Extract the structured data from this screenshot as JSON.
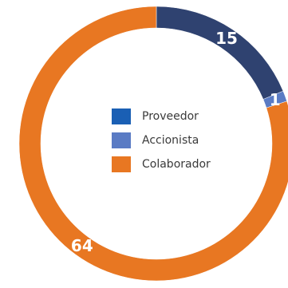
{
  "chart_data": {
    "type": "pie",
    "variant": "donut",
    "categories": [
      "Proveedor",
      "Accionista",
      "Colaborador"
    ],
    "values": [
      15,
      1,
      64
    ],
    "slice_labels": [
      "15",
      "1",
      "64"
    ],
    "colors": {
      "Proveedor": "#2f4270",
      "Accionista": "#5a7bc4",
      "Colaborador": "#e87722"
    },
    "legend": {
      "placement": "center",
      "entries": [
        {
          "label": "Proveedor",
          "color": "#1a5fb4"
        },
        {
          "label": "Accionista",
          "color": "#5a7bc4"
        },
        {
          "label": "Colaborador",
          "color": "#e87722"
        }
      ]
    }
  }
}
